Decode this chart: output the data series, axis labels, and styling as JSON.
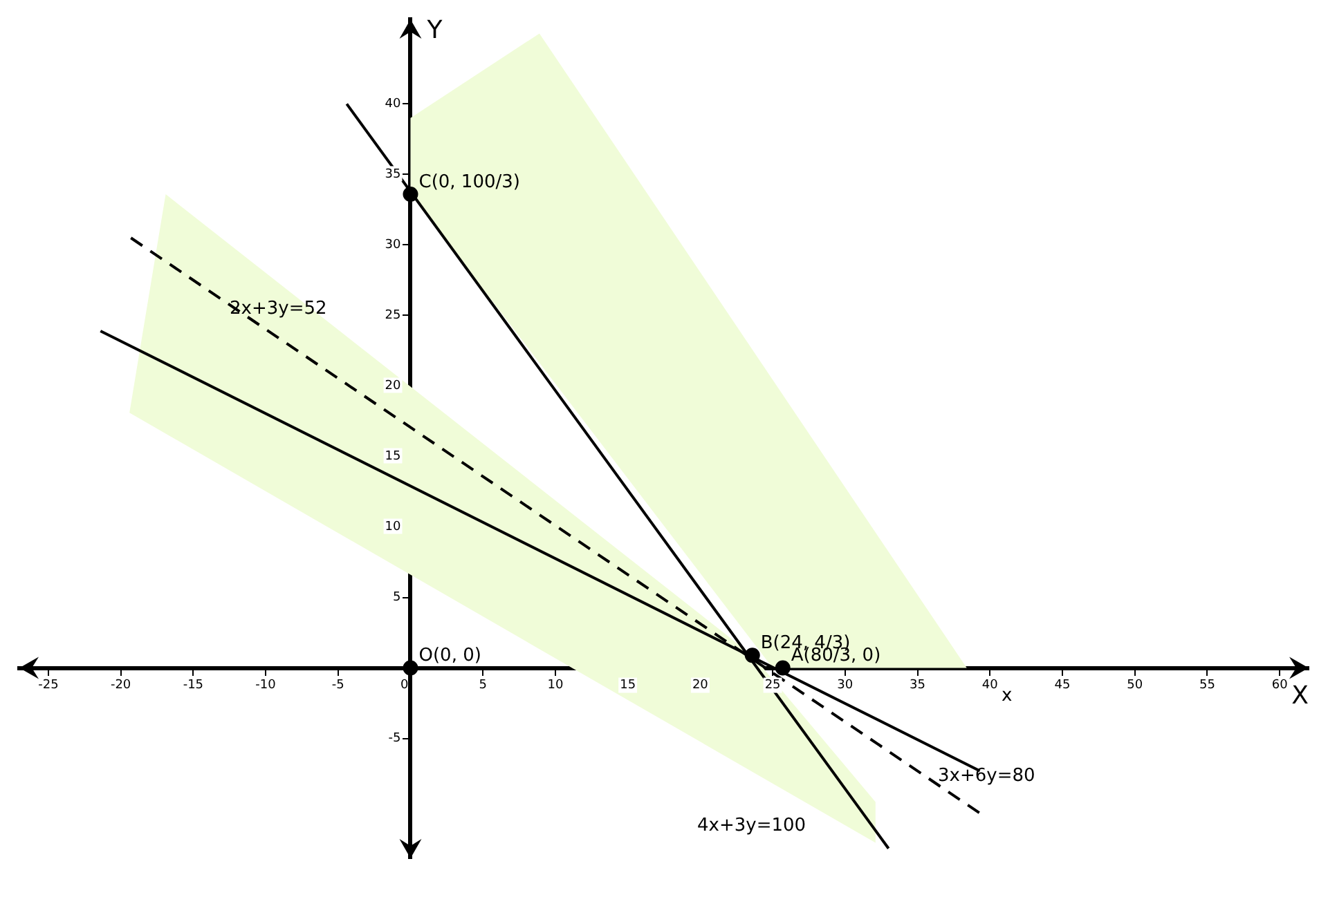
{
  "chart_data": {
    "type": "line",
    "xlabel": "X",
    "ylabel": "Y",
    "xlim": [
      -27,
      62
    ],
    "ylim": [
      -13.5,
      46
    ],
    "xticks": [
      -25,
      -20,
      -15,
      -10,
      -5,
      0,
      5,
      10,
      15,
      20,
      25,
      30,
      35,
      40,
      45,
      50,
      55,
      60
    ],
    "yticks": [
      -5,
      5,
      10,
      15,
      20,
      25,
      30,
      35,
      40
    ],
    "grid": false,
    "legend": false,
    "series": [
      {
        "type": "area",
        "color": "#f0fcd8",
        "x": [
          0,
          8.9,
          38.4,
          25,
          0
        ],
        "values": [
          39,
          45,
          0,
          0,
          33.6
        ]
      },
      {
        "type": "area",
        "color": "#f0fcd8",
        "x": [
          -19.4,
          -16.9,
          23.6,
          32.1,
          32.1
        ],
        "values": [
          18.1,
          33.6,
          0.9,
          -9.5,
          -12.4
        ]
      },
      {
        "type": "line",
        "color": "#000000",
        "line_style": "solid",
        "x": [
          -4.4,
          33
        ],
        "values": [
          40,
          -12.8
        ]
      },
      {
        "type": "line",
        "color": "#000000",
        "line_style": "solid",
        "x": [
          -21.4,
          39.3
        ],
        "values": [
          23.9,
          -7.3
        ]
      },
      {
        "type": "line",
        "color": "#000000",
        "line_style": "dashed",
        "x": [
          -19.3,
          39.3
        ],
        "values": [
          30.5,
          -10.3
        ]
      },
      {
        "type": "scatter",
        "color": "#000000",
        "marker": "circle",
        "x": [
          0,
          0,
          23.6,
          25.7
        ],
        "values": [
          0,
          33.6,
          0.9,
          0
        ]
      }
    ],
    "annotations": [
      {
        "text": "O(0, 0)",
        "x": 0,
        "y": 0
      },
      {
        "text": "C(0, 100/3)",
        "x": 0,
        "y": 33.6
      },
      {
        "text": "B(24, 4/3)",
        "x": 23.6,
        "y": 0.9
      },
      {
        "text": "A(80/3, 0)",
        "x": 25.7,
        "y": 0
      },
      "2x+3y=52",
      "3x+6y=80",
      "4x+3y=100",
      "x"
    ]
  }
}
